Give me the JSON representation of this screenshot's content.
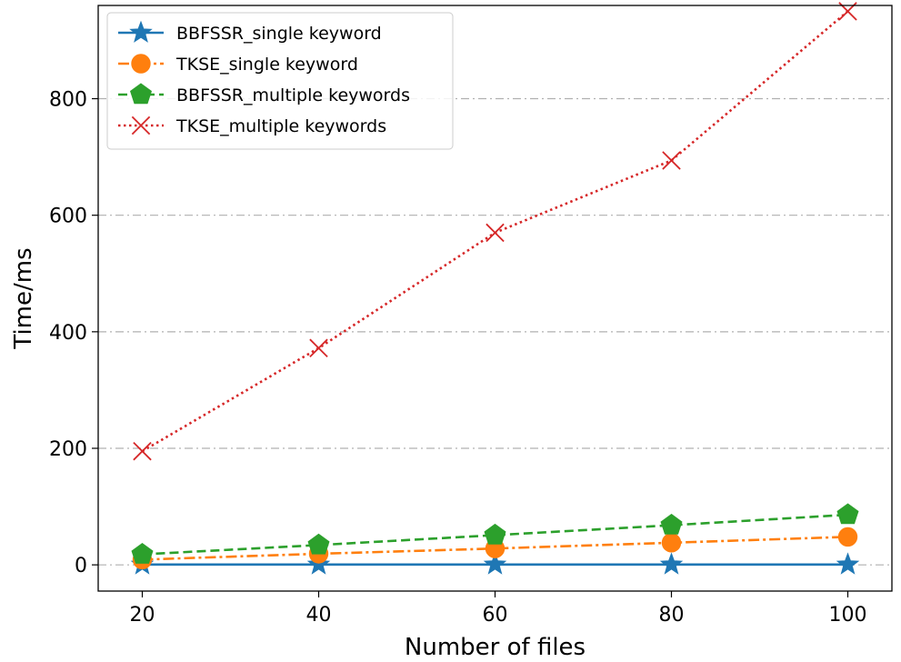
{
  "chart_data": {
    "type": "line",
    "title": "",
    "xlabel": "Number of files",
    "ylabel": "Time/ms",
    "x": [
      20,
      40,
      60,
      80,
      100
    ],
    "xlim": [
      15,
      105
    ],
    "ylim": [
      -45,
      960
    ],
    "xticks": [
      "20",
      "40",
      "60",
      "80",
      "100"
    ],
    "yticks": [
      "0",
      "200",
      "400",
      "600",
      "800"
    ],
    "grid": "horizontal dash-dot",
    "legend_position": "top-left",
    "series": [
      {
        "name": "BBFSSR_single keyword",
        "values": [
          0.5,
          0.5,
          0.5,
          0.5,
          0.5
        ],
        "color": "#1f77b4",
        "marker": "star",
        "line": "solid"
      },
      {
        "name": "TKSE_single keyword",
        "values": [
          9,
          19,
          28,
          38,
          48
        ],
        "color": "#ff7f0e",
        "marker": "circle",
        "line": "dashdot"
      },
      {
        "name": "BBFSSR_multiple keywords",
        "values": [
          18,
          34,
          51,
          68,
          86
        ],
        "color": "#2ca02c",
        "marker": "pentagon",
        "line": "dashed"
      },
      {
        "name": "TKSE_multiple keywords",
        "values": [
          195,
          372,
          570,
          694,
          950
        ],
        "color": "#d62728",
        "marker": "x",
        "line": "dotted"
      }
    ]
  }
}
